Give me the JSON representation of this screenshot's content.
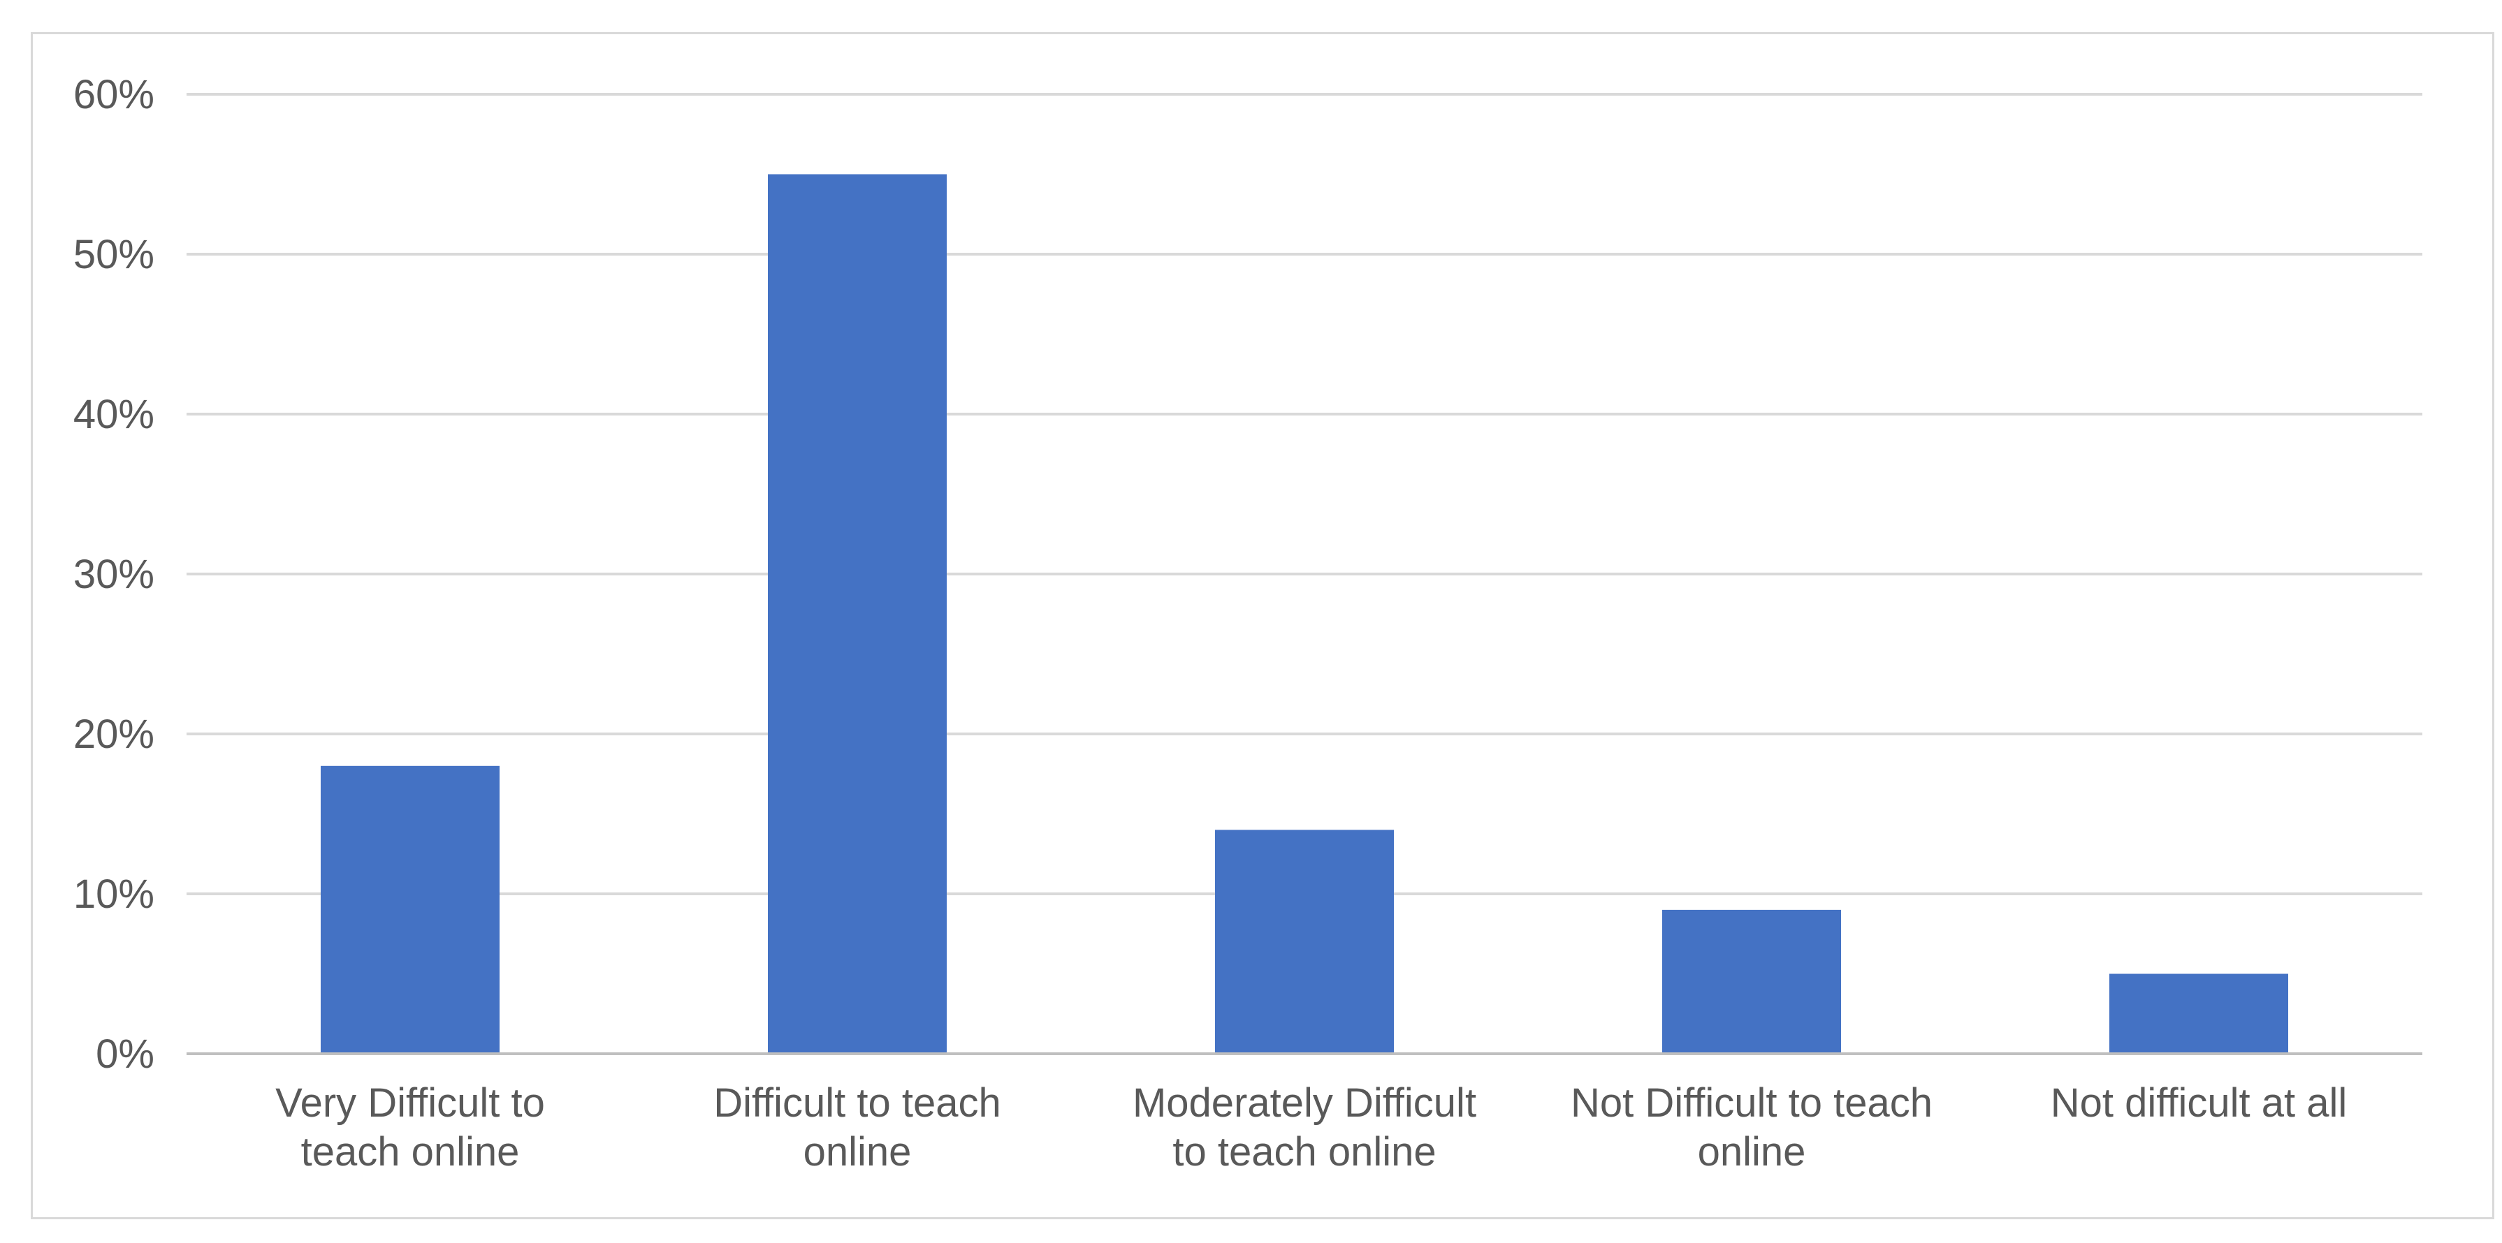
{
  "chart_data": {
    "type": "bar",
    "title": "",
    "xlabel": "",
    "ylabel": "",
    "categories": [
      [
        "Very Difficult to",
        "teach online"
      ],
      [
        "Difficult to teach",
        "online"
      ],
      [
        "Moderately Difficult",
        "to teach online"
      ],
      [
        "Not Difficult to teach",
        "online"
      ],
      [
        "Not difficult at all"
      ]
    ],
    "values": [
      18,
      55,
      14,
      9,
      5
    ],
    "y_ticks": [
      "0%",
      "10%",
      "20%",
      "30%",
      "40%",
      "50%",
      "60%"
    ],
    "ylim": [
      0,
      60
    ],
    "y_unit": "%",
    "grid": true,
    "legend": "none",
    "bar_color": "#4472c4"
  }
}
